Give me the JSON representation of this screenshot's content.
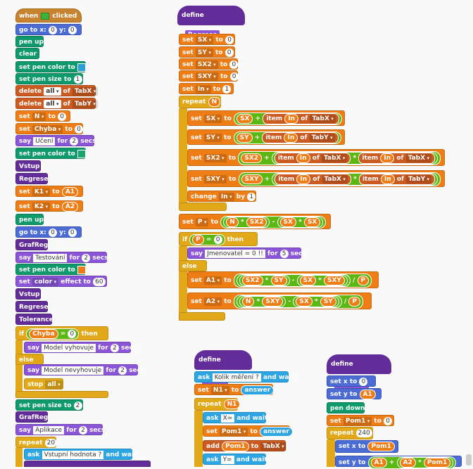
{
  "blocks": {
    "hat_when": "when",
    "hat_clicked": "clicked",
    "goto_x": "go to x:",
    "goto_y": "y:",
    "zero": "0",
    "one": "1",
    "two": "2",
    "pen_up": "pen up",
    "pen_down": "pen down",
    "clear": "clear",
    "set_pen_color_to": "set pen color to",
    "set_pen_size_to": "set pen size to",
    "delete": "delete",
    "all": "all",
    "of": "of",
    "tabx": "TabX",
    "taby": "TabY",
    "set": "set",
    "to": "to",
    "n": "N",
    "chyba": "Chyba",
    "say": "say",
    "for": "for",
    "secs": "secs",
    "uceni": "Učení",
    "vstup": "Vstup",
    "regrese": "Regrese",
    "k1": "K1",
    "k2": "K2",
    "a1": "A1",
    "a2": "A2",
    "grafreg": "GrafReg",
    "testovani": "Testování",
    "color": "color",
    "effect_to": "effect to",
    "sixty": "60",
    "tolerance": "Tolerance",
    "if": "if",
    "then": "then",
    "else": "else",
    "model_ok": "Model vyhovuje",
    "model_bad": "Model nevyhovuje",
    "stop": "stop",
    "aplikace": "Aplikace",
    "repeat": "repeat",
    "twenty": "20",
    "ask": "ask",
    "and_wait": "and wait",
    "vstupni": "Vstupní hodnota ?",
    "define": "define",
    "sx": "SX",
    "sy": "SY",
    "sx2": "SX2",
    "sxy": "SXY",
    "in": "In",
    "item": "item",
    "change": "change",
    "by": "by",
    "p": "P",
    "jmenovatel": "Jmenovatel = 0 !!",
    "five": "5",
    "kolik": "Kolik měření ?",
    "n1": "N1",
    "answer": "answer",
    "xq": "X=",
    "yq": "Y=",
    "pom1": "Pom1",
    "add": "add",
    "set_x_to": "set x to",
    "set_y_to": "set y to",
    "n240": "240",
    "plus": "+",
    "minus": "-",
    "times": "*",
    "div": "/",
    "eq": "=",
    "zero_sign": "0"
  }
}
